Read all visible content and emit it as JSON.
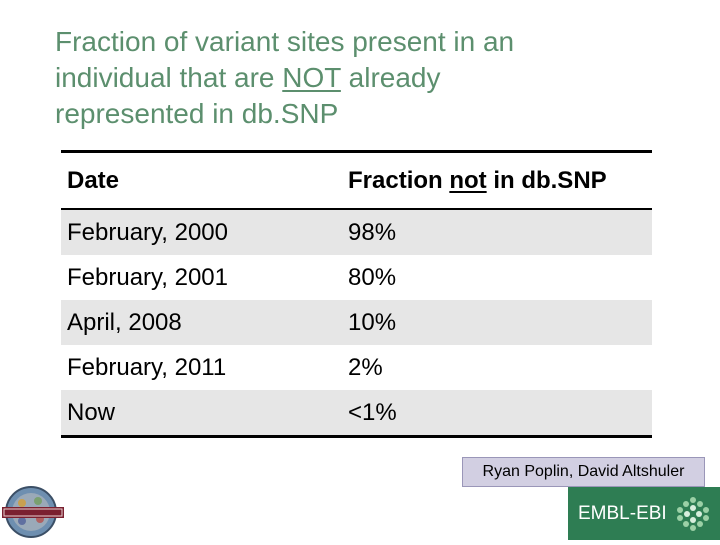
{
  "title": {
    "line1": "Fraction of variant sites present in an",
    "line2_pre": "individual that are ",
    "line2_underlined": "NOT",
    "line2_post": " already",
    "line3": "represented in db.SNP"
  },
  "table": {
    "headers": {
      "date": "Date",
      "fraction_pre": "Fraction ",
      "fraction_underlined": "not",
      "fraction_post": " in db.SNP"
    },
    "rows": [
      {
        "date": "February, 2000",
        "fraction": "98%"
      },
      {
        "date": "February, 2001",
        "fraction": "80%"
      },
      {
        "date": "April, 2008",
        "fraction": "10%"
      },
      {
        "date": "February, 2011",
        "fraction": "2%"
      },
      {
        "date": "Now",
        "fraction": "<1%"
      }
    ]
  },
  "credit": "Ryan Poplin, David Altshuler",
  "logos": {
    "embl_text": "EMBL-EBI",
    "embl_color": "#2e7d53",
    "thousand_genomes_icon": "1000-genomes-logo-icon",
    "embl_icon": "embl-ebi-hexagon-icon"
  },
  "colors": {
    "title": "#5c8f6e",
    "row_shade": "#e6e6e6",
    "credit_bg": "#d2cfe2"
  }
}
